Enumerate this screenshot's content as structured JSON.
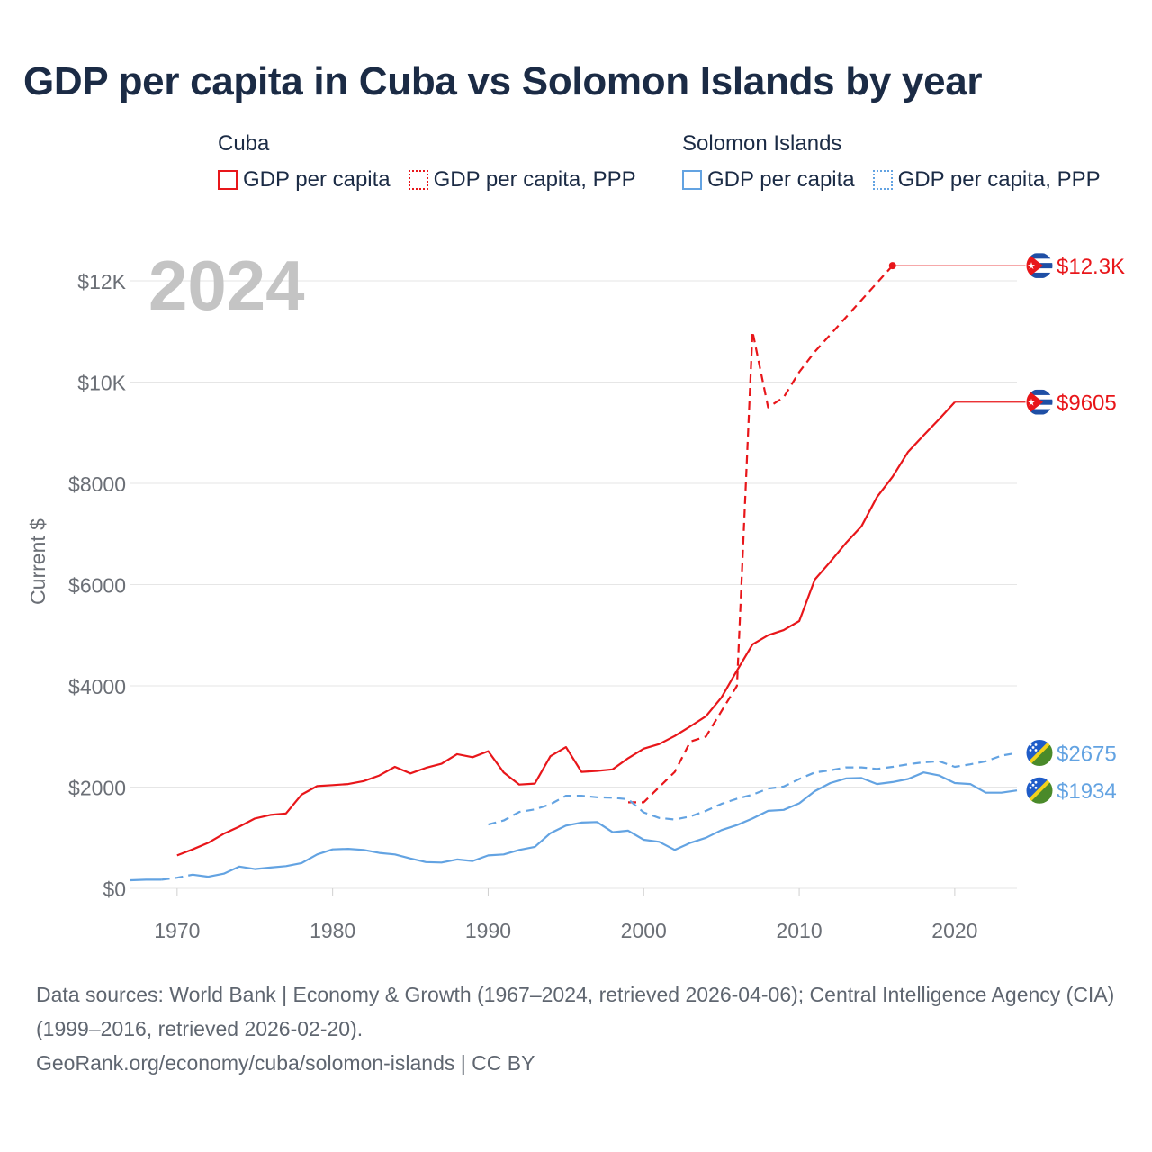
{
  "title": "GDP per capita in Cuba vs Solomon Islands by year",
  "legend": {
    "groups": [
      {
        "name": "Cuba",
        "items": [
          {
            "label": "GDP per capita",
            "color": "#e8161a",
            "style": "solid"
          },
          {
            "label": "GDP per capita, PPP",
            "color": "#e8161a",
            "style": "dotted"
          }
        ]
      },
      {
        "name": "Solomon Islands",
        "items": [
          {
            "label": "GDP per capita",
            "color": "#63a3e2",
            "style": "solid"
          },
          {
            "label": "GDP per capita, PPP",
            "color": "#63a3e2",
            "style": "dotted"
          }
        ]
      }
    ]
  },
  "year_label": "2024",
  "footer": {
    "sources": "Data sources: World Bank | Economy & Growth (1967–2024, retrieved 2026-04-06); Central Intelligence Agency (CIA) (1999–2016, retrieved 2026-02-20).",
    "attribution": "GeoRank.org/economy/cuba/solomon-islands | CC BY"
  },
  "chart_data": {
    "type": "line",
    "title": "GDP per capita in Cuba vs Solomon Islands by year",
    "xlabel": "",
    "ylabel": "Current $",
    "xlim": [
      1967,
      2024
    ],
    "ylim": [
      0,
      13000
    ],
    "x_ticks": [
      1970,
      1980,
      1990,
      2000,
      2010,
      2020
    ],
    "x_tick_labels": [
      "1970",
      "1980",
      "1990",
      "2000",
      "2010",
      "2020"
    ],
    "y_ticks": [
      0,
      2000,
      4000,
      6000,
      8000,
      10000,
      12000
    ],
    "y_tick_labels": [
      "$0",
      "$2000",
      "$4000",
      "$6000",
      "$8000",
      "$10K",
      "$12K"
    ],
    "grid": true,
    "series": [
      {
        "name": "Cuba GDP per capita",
        "country": "Cuba",
        "color": "#e8161a",
        "dash": "solid",
        "end_label": "$9605",
        "flag": "cuba",
        "extend_to": 2024,
        "x": [
          1970,
          1971,
          1972,
          1973,
          1974,
          1975,
          1976,
          1977,
          1978,
          1979,
          1980,
          1981,
          1982,
          1983,
          1984,
          1985,
          1986,
          1987,
          1988,
          1989,
          1990,
          1991,
          1992,
          1993,
          1994,
          1995,
          1996,
          1997,
          1998,
          1999,
          2000,
          2001,
          2002,
          2003,
          2004,
          2005,
          2006,
          2007,
          2008,
          2009,
          2010,
          2011,
          2012,
          2013,
          2014,
          2015,
          2016,
          2017,
          2018,
          2019,
          2020
        ],
        "values": [
          650,
          770,
          900,
          1080,
          1220,
          1380,
          1450,
          1480,
          1850,
          2020,
          2040,
          2060,
          2120,
          2230,
          2400,
          2270,
          2380,
          2460,
          2650,
          2590,
          2710,
          2290,
          2050,
          2070,
          2610,
          2790,
          2300,
          2320,
          2350,
          2570,
          2760,
          2850,
          3010,
          3200,
          3400,
          3770,
          4300,
          4820,
          5000,
          5100,
          5280,
          6100,
          6450,
          6820,
          7150,
          7730,
          8130,
          8620,
          8950,
          9270,
          9605
        ]
      },
      {
        "name": "Cuba GDP per capita, PPP",
        "country": "Cuba",
        "color": "#e8161a",
        "dash": "dashed",
        "end_label": "$12.3K",
        "flag": "cuba",
        "extend_to": 2024,
        "end_marker": true,
        "x": [
          1999,
          2000,
          2001,
          2002,
          2003,
          2004,
          2005,
          2006,
          2007,
          2008,
          2009,
          2010,
          2011,
          2016
        ],
        "values": [
          1700,
          1700,
          2000,
          2300,
          2900,
          3000,
          3500,
          4000,
          11000,
          9500,
          9700,
          10200,
          10600,
          12300
        ]
      },
      {
        "name": "Solomon Islands GDP per capita",
        "country": "Solomon Islands",
        "color": "#63a3e2",
        "dash": "solid",
        "end_label": "$1934",
        "flag": "solomon-islands",
        "x": [
          1967,
          1968,
          1969,
          1970,
          1971,
          1972,
          1973,
          1974,
          1975,
          1976,
          1977,
          1978,
          1979,
          1980,
          1981,
          1982,
          1983,
          1984,
          1985,
          1986,
          1987,
          1988,
          1989,
          1990,
          1991,
          1992,
          1993,
          1994,
          1995,
          1996,
          1997,
          1998,
          1999,
          2000,
          2001,
          2002,
          2003,
          2004,
          2005,
          2006,
          2007,
          2008,
          2009,
          2010,
          2011,
          2012,
          2013,
          2014,
          2015,
          2016,
          2017,
          2018,
          2019,
          2020,
          2021,
          2022,
          2023,
          2024
        ],
        "values": [
          160,
          170,
          170,
          210,
          270,
          230,
          290,
          430,
          380,
          410,
          440,
          500,
          670,
          770,
          780,
          760,
          700,
          670,
          590,
          520,
          510,
          570,
          540,
          650,
          670,
          760,
          820,
          1090,
          1240,
          1300,
          1310,
          1110,
          1140,
          960,
          920,
          760,
          900,
          1000,
          1150,
          1250,
          1380,
          1530,
          1550,
          1680,
          1920,
          2080,
          2170,
          2180,
          2060,
          2100,
          2160,
          2290,
          2230,
          2080,
          2060,
          1890,
          1890,
          1934
        ],
        "dashed_ranges": [
          [
            1969,
            1971
          ]
        ]
      },
      {
        "name": "Solomon Islands GDP per capita, PPP",
        "country": "Solomon Islands",
        "color": "#63a3e2",
        "dash": "dashed",
        "end_label": "$2675",
        "flag": "solomon-islands",
        "x": [
          1990,
          1991,
          1992,
          1993,
          1994,
          1995,
          1996,
          1997,
          1998,
          1999,
          2000,
          2001,
          2002,
          2003,
          2004,
          2005,
          2006,
          2007,
          2008,
          2009,
          2010,
          2011,
          2012,
          2013,
          2014,
          2015,
          2016,
          2017,
          2018,
          2019,
          2020,
          2021,
          2022,
          2023,
          2024
        ],
        "values": [
          1260,
          1340,
          1510,
          1560,
          1660,
          1830,
          1830,
          1800,
          1790,
          1760,
          1500,
          1390,
          1360,
          1420,
          1530,
          1670,
          1770,
          1850,
          1970,
          2010,
          2160,
          2290,
          2330,
          2390,
          2390,
          2360,
          2400,
          2450,
          2490,
          2510,
          2400,
          2450,
          2510,
          2620,
          2675
        ]
      }
    ]
  }
}
